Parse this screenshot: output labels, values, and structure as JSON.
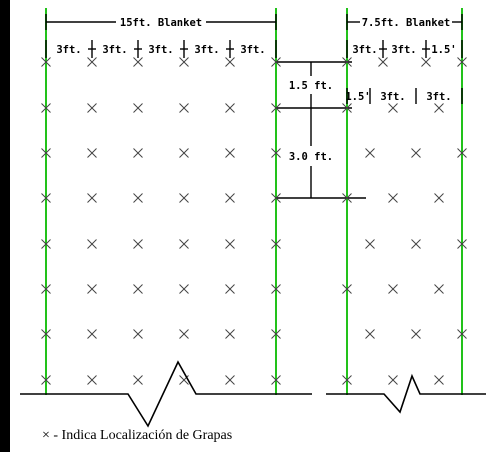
{
  "colors": {
    "stake_line": "#22c21a",
    "ink": "#000000",
    "background": "#ffffff"
  },
  "dimensions": {
    "blanket_15": "15ft. Blanket",
    "blanket_7_5": "7.5ft. Blanket",
    "seg_3ft": "3ft.",
    "seg_1_5_prime": "1.5'",
    "vertical_1_5": "1.5 ft.",
    "vertical_3_0": "3.0 ft."
  },
  "legend": {
    "marker_icon": "x-mark-icon",
    "text": "× - Indica Localización de Grapas"
  }
}
